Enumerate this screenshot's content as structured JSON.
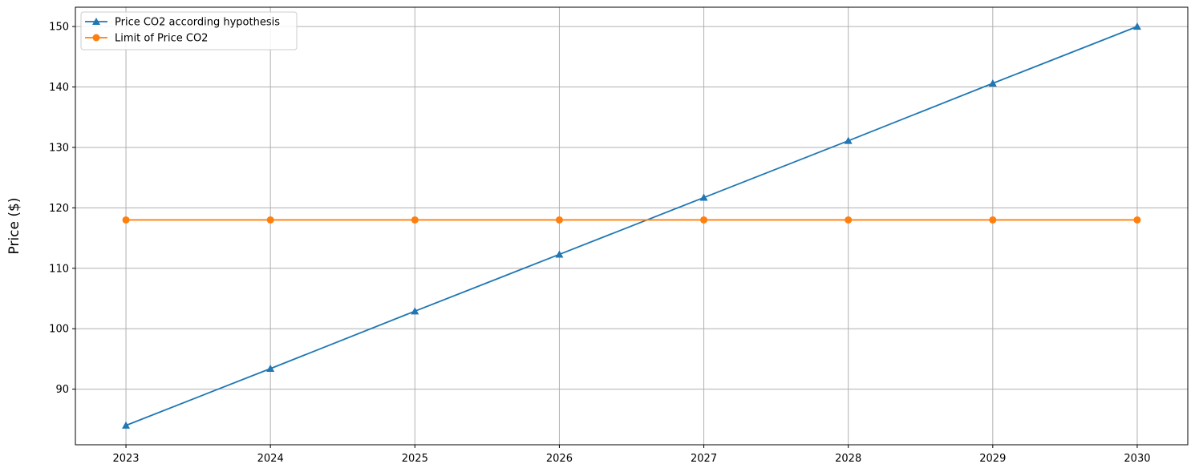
{
  "chart_data": {
    "type": "line",
    "title": "",
    "xlabel": "",
    "ylabel": "Price ($)",
    "x": [
      2023,
      2024,
      2025,
      2026,
      2027,
      2028,
      2029,
      2030
    ],
    "xlim": [
      2022.65,
      2030.35
    ],
    "ylim": [
      80.8,
      153.2
    ],
    "yticks": [
      90,
      100,
      110,
      120,
      130,
      140,
      150
    ],
    "grid": true,
    "legend": "top-left",
    "series": [
      {
        "name": "Price CO2 according hypothesis",
        "color": "#1f77b4",
        "marker": "triangle",
        "values": [
          84.0,
          93.4,
          102.9,
          112.3,
          121.7,
          131.1,
          140.6,
          150.0
        ]
      },
      {
        "name": "Limit of Price CO2",
        "color": "#ff7f0e",
        "marker": "circle",
        "values": [
          118,
          118,
          118,
          118,
          118,
          118,
          118,
          118
        ]
      }
    ]
  }
}
